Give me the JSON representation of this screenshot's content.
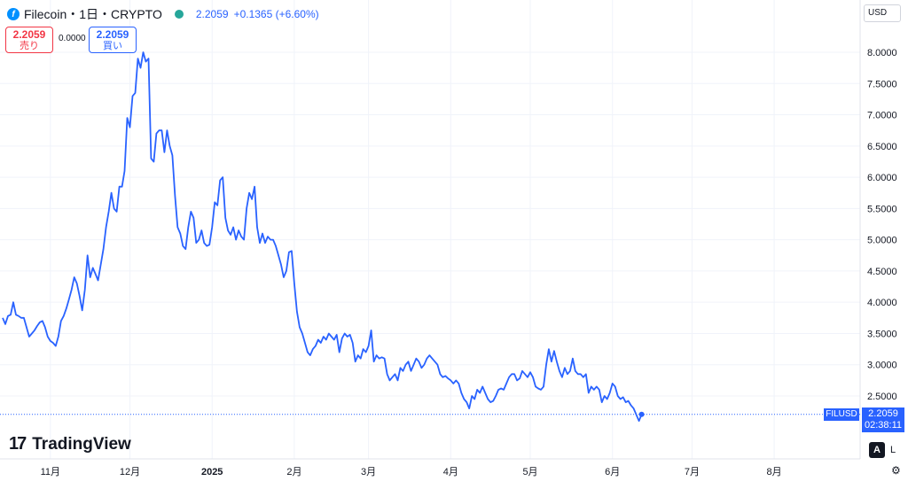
{
  "header": {
    "title": "Filecoin・1日・CRYPTO",
    "icon_letter": "f",
    "price": "2.2059",
    "change": "+0.1365 (+6.60%)"
  },
  "trade": {
    "sell_price": "2.2059",
    "sell_label": "売り",
    "spread": "0.0000",
    "buy_price": "2.2059",
    "buy_label": "買い"
  },
  "currency": "USD",
  "logo": "TradingView",
  "price_tag": {
    "symbol": "FILUSD",
    "price": "2.2059",
    "timer": "02:38:11"
  },
  "scale_buttons": {
    "auto": "A",
    "log": "L"
  },
  "colors": {
    "line": "#2962ff",
    "grid": "#f0f3fa",
    "accent": "#2962ff",
    "sell": "#f23645"
  },
  "chart_data": {
    "type": "line",
    "title": "Filecoin・1日・CRYPTO",
    "xlabel": "",
    "ylabel": "",
    "y_ticks": [
      "2.5000",
      "3.0000",
      "3.5000",
      "4.0000",
      "4.5000",
      "5.0000",
      "5.5000",
      "6.0000",
      "6.5000",
      "7.0000",
      "7.5000",
      "8.0000"
    ],
    "ylim": [
      1.95,
      8.4
    ],
    "x_ticks": [
      {
        "label": "11月",
        "i": 18
      },
      {
        "label": "12月",
        "i": 48
      },
      {
        "label": "2025",
        "i": 79,
        "bold": true
      },
      {
        "label": "2月",
        "i": 110
      },
      {
        "label": "3月",
        "i": 138
      },
      {
        "label": "4月",
        "i": 169
      },
      {
        "label": "5月",
        "i": 199
      },
      {
        "label": "6月",
        "i": 230
      },
      {
        "label": "7月",
        "i": 260
      },
      {
        "label": "8月",
        "i": 291
      }
    ],
    "x_count": 320,
    "last_value": 2.2059,
    "values": [
      3.75,
      3.65,
      3.78,
      3.8,
      4.0,
      3.8,
      3.78,
      3.75,
      3.75,
      3.6,
      3.45,
      3.5,
      3.55,
      3.62,
      3.68,
      3.7,
      3.6,
      3.45,
      3.38,
      3.35,
      3.3,
      3.45,
      3.7,
      3.78,
      3.9,
      4.05,
      4.2,
      4.4,
      4.3,
      4.1,
      3.87,
      4.2,
      4.75,
      4.4,
      4.55,
      4.45,
      4.35,
      4.6,
      4.85,
      5.2,
      5.45,
      5.75,
      5.5,
      5.45,
      5.85,
      5.85,
      6.1,
      6.95,
      6.8,
      7.3,
      7.35,
      7.9,
      7.75,
      8.0,
      7.85,
      7.9,
      6.3,
      6.25,
      6.7,
      6.75,
      6.75,
      6.4,
      6.75,
      6.5,
      6.35,
      5.7,
      5.2,
      5.1,
      4.9,
      4.85,
      5.2,
      5.45,
      5.35,
      4.95,
      5.0,
      5.15,
      4.95,
      4.9,
      4.92,
      5.2,
      5.6,
      5.55,
      5.95,
      6.0,
      5.35,
      5.15,
      5.08,
      5.2,
      5.0,
      5.15,
      5.05,
      5.0,
      5.5,
      5.75,
      5.65,
      5.85,
      5.2,
      4.95,
      5.1,
      4.95,
      5.05,
      5.0,
      5.0,
      4.9,
      4.75,
      4.6,
      4.4,
      4.5,
      4.8,
      4.82,
      4.3,
      3.85,
      3.6,
      3.5,
      3.35,
      3.2,
      3.15,
      3.25,
      3.3,
      3.4,
      3.35,
      3.45,
      3.4,
      3.5,
      3.45,
      3.4,
      3.48,
      3.2,
      3.42,
      3.5,
      3.45,
      3.48,
      3.35,
      3.05,
      3.15,
      3.1,
      3.25,
      3.2,
      3.3,
      3.55,
      3.05,
      3.15,
      3.1,
      3.12,
      3.1,
      2.85,
      2.75,
      2.8,
      2.85,
      2.75,
      2.95,
      2.9,
      3.0,
      3.05,
      2.9,
      3.0,
      3.1,
      3.05,
      2.95,
      3.0,
      3.1,
      3.15,
      3.1,
      3.05,
      3.0,
      2.85,
      2.8,
      2.82,
      2.78,
      2.75,
      2.7,
      2.75,
      2.7,
      2.55,
      2.45,
      2.4,
      2.3,
      2.5,
      2.45,
      2.6,
      2.55,
      2.65,
      2.55,
      2.45,
      2.4,
      2.42,
      2.5,
      2.6,
      2.62,
      2.6,
      2.7,
      2.8,
      2.85,
      2.85,
      2.75,
      2.78,
      2.9,
      2.85,
      2.8,
      2.88,
      2.8,
      2.65,
      2.62,
      2.6,
      2.65,
      3.0,
      3.25,
      3.05,
      3.22,
      3.05,
      2.9,
      2.8,
      2.95,
      2.85,
      2.9,
      3.1,
      2.9,
      2.85,
      2.85,
      2.8,
      2.85,
      2.55,
      2.65,
      2.6,
      2.65,
      2.6,
      2.4,
      2.5,
      2.45,
      2.55,
      2.7,
      2.65,
      2.5,
      2.45,
      2.48,
      2.4,
      2.42,
      2.35,
      2.3,
      2.2,
      2.1,
      2.2059
    ]
  }
}
